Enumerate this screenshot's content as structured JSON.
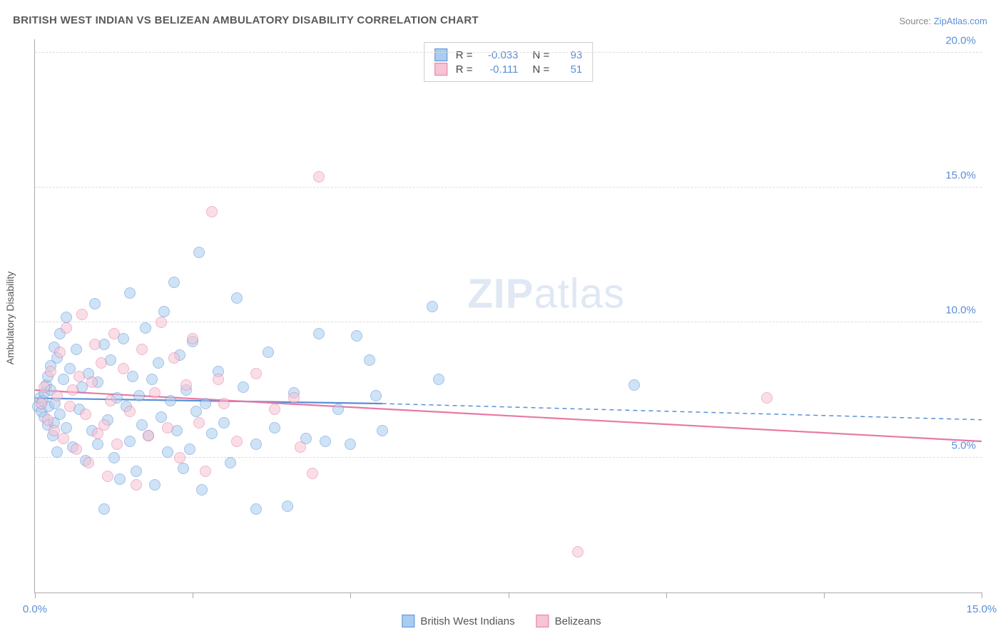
{
  "title": "BRITISH WEST INDIAN VS BELIZEAN AMBULATORY DISABILITY CORRELATION CHART",
  "source_label": "Source: ",
  "source_link_text": "ZipAtlas.com",
  "chart": {
    "type": "scatter",
    "xlim": [
      0,
      15
    ],
    "ylim": [
      0,
      20.5
    ],
    "x_ticks": [
      0,
      2.5,
      5,
      7.5,
      10,
      12.5,
      15
    ],
    "x_tick_labels": [
      "0.0%",
      "",
      "",
      "",
      "",
      "",
      "15.0%"
    ],
    "y_ticks": [
      5,
      10,
      15,
      20
    ],
    "y_tick_labels": [
      "5.0%",
      "10.0%",
      "15.0%",
      "20.0%"
    ],
    "ylabel": "Ambulatory Disability",
    "background_color": "#ffffff",
    "grid_color": "#dddddd",
    "axis_color": "#aaaaaa",
    "tick_label_color": "#5a8fd6",
    "label_color": "#555555",
    "label_fontsize": 14,
    "tick_fontsize": 15,
    "marker_size": 16,
    "marker_opacity": 0.55,
    "watermark_text_bold": "ZIP",
    "watermark_text_light": "atlas",
    "watermark_color": "#dfe8f3",
    "series": [
      {
        "name": "British West Indians",
        "fill_color": "#a9cdef",
        "stroke_color": "#5a8fd6",
        "R": "-0.033",
        "N": "93",
        "trend": {
          "x1": 0,
          "y1": 7.2,
          "x2": 5.5,
          "y2": 7.0,
          "dash_extend_x": 15,
          "dash_extend_y": 6.4,
          "width": 2.2
        },
        "points": [
          [
            0.05,
            6.9
          ],
          [
            0.08,
            7.2
          ],
          [
            0.1,
            6.7
          ],
          [
            0.12,
            7.1
          ],
          [
            0.15,
            6.5
          ],
          [
            0.15,
            7.4
          ],
          [
            0.18,
            7.7
          ],
          [
            0.2,
            6.2
          ],
          [
            0.2,
            8.0
          ],
          [
            0.22,
            6.9
          ],
          [
            0.25,
            7.5
          ],
          [
            0.25,
            8.4
          ],
          [
            0.28,
            5.8
          ],
          [
            0.3,
            6.3
          ],
          [
            0.3,
            9.1
          ],
          [
            0.32,
            7.0
          ],
          [
            0.35,
            8.7
          ],
          [
            0.35,
            5.2
          ],
          [
            0.4,
            9.6
          ],
          [
            0.4,
            6.6
          ],
          [
            0.45,
            7.9
          ],
          [
            0.5,
            6.1
          ],
          [
            0.5,
            10.2
          ],
          [
            0.55,
            8.3
          ],
          [
            0.6,
            5.4
          ],
          [
            0.65,
            9.0
          ],
          [
            0.7,
            6.8
          ],
          [
            0.75,
            7.6
          ],
          [
            0.8,
            4.9
          ],
          [
            0.85,
            8.1
          ],
          [
            0.9,
            6.0
          ],
          [
            0.95,
            10.7
          ],
          [
            1.0,
            5.5
          ],
          [
            1.0,
            7.8
          ],
          [
            1.1,
            3.1
          ],
          [
            1.1,
            9.2
          ],
          [
            1.15,
            6.4
          ],
          [
            1.2,
            8.6
          ],
          [
            1.25,
            5.0
          ],
          [
            1.3,
            7.2
          ],
          [
            1.35,
            4.2
          ],
          [
            1.4,
            9.4
          ],
          [
            1.45,
            6.9
          ],
          [
            1.5,
            11.1
          ],
          [
            1.5,
            5.6
          ],
          [
            1.55,
            8.0
          ],
          [
            1.6,
            4.5
          ],
          [
            1.65,
            7.3
          ],
          [
            1.7,
            6.2
          ],
          [
            1.75,
            9.8
          ],
          [
            1.8,
            5.8
          ],
          [
            1.85,
            7.9
          ],
          [
            1.9,
            4.0
          ],
          [
            1.95,
            8.5
          ],
          [
            2.0,
            6.5
          ],
          [
            2.05,
            10.4
          ],
          [
            2.1,
            5.2
          ],
          [
            2.15,
            7.1
          ],
          [
            2.2,
            11.5
          ],
          [
            2.25,
            6.0
          ],
          [
            2.3,
            8.8
          ],
          [
            2.35,
            4.6
          ],
          [
            2.4,
            7.5
          ],
          [
            2.45,
            5.3
          ],
          [
            2.5,
            9.3
          ],
          [
            2.55,
            6.7
          ],
          [
            2.6,
            12.6
          ],
          [
            2.65,
            3.8
          ],
          [
            2.7,
            7.0
          ],
          [
            2.8,
            5.9
          ],
          [
            2.9,
            8.2
          ],
          [
            3.0,
            6.3
          ],
          [
            3.1,
            4.8
          ],
          [
            3.2,
            10.9
          ],
          [
            3.3,
            7.6
          ],
          [
            3.5,
            5.5
          ],
          [
            3.5,
            3.1
          ],
          [
            3.7,
            8.9
          ],
          [
            3.8,
            6.1
          ],
          [
            4.0,
            3.2
          ],
          [
            4.1,
            7.4
          ],
          [
            4.3,
            5.7
          ],
          [
            4.5,
            9.6
          ],
          [
            4.6,
            5.6
          ],
          [
            4.8,
            6.8
          ],
          [
            5.0,
            5.5
          ],
          [
            5.1,
            9.5
          ],
          [
            5.3,
            8.6
          ],
          [
            5.4,
            7.3
          ],
          [
            5.5,
            6.0
          ],
          [
            6.3,
            10.6
          ],
          [
            6.4,
            7.9
          ],
          [
            9.5,
            7.7
          ]
        ]
      },
      {
        "name": "Belizeans",
        "fill_color": "#f6c4d2",
        "stroke_color": "#e879a6",
        "R": "-0.111",
        "N": "51",
        "trend": {
          "x1": 0,
          "y1": 7.5,
          "x2": 15,
          "y2": 5.6,
          "width": 2.2
        },
        "points": [
          [
            0.1,
            7.0
          ],
          [
            0.15,
            7.6
          ],
          [
            0.2,
            6.4
          ],
          [
            0.25,
            8.2
          ],
          [
            0.3,
            6.0
          ],
          [
            0.35,
            7.3
          ],
          [
            0.4,
            8.9
          ],
          [
            0.45,
            5.7
          ],
          [
            0.5,
            9.8
          ],
          [
            0.55,
            6.9
          ],
          [
            0.6,
            7.5
          ],
          [
            0.65,
            5.3
          ],
          [
            0.7,
            8.0
          ],
          [
            0.75,
            10.3
          ],
          [
            0.8,
            6.6
          ],
          [
            0.85,
            4.8
          ],
          [
            0.9,
            7.8
          ],
          [
            0.95,
            9.2
          ],
          [
            1.0,
            5.9
          ],
          [
            1.05,
            8.5
          ],
          [
            1.1,
            6.2
          ],
          [
            1.15,
            4.3
          ],
          [
            1.2,
            7.1
          ],
          [
            1.25,
            9.6
          ],
          [
            1.3,
            5.5
          ],
          [
            1.4,
            8.3
          ],
          [
            1.5,
            6.7
          ],
          [
            1.6,
            4.0
          ],
          [
            1.7,
            9.0
          ],
          [
            1.8,
            5.8
          ],
          [
            1.9,
            7.4
          ],
          [
            2.0,
            10.0
          ],
          [
            2.1,
            6.1
          ],
          [
            2.2,
            8.7
          ],
          [
            2.3,
            5.0
          ],
          [
            2.4,
            7.7
          ],
          [
            2.5,
            9.4
          ],
          [
            2.6,
            6.3
          ],
          [
            2.7,
            4.5
          ],
          [
            2.8,
            14.1
          ],
          [
            3.0,
            7.0
          ],
          [
            3.2,
            5.6
          ],
          [
            3.5,
            8.1
          ],
          [
            3.8,
            6.8
          ],
          [
            4.1,
            7.2
          ],
          [
            4.2,
            5.4
          ],
          [
            4.4,
            4.4
          ],
          [
            4.5,
            15.4
          ],
          [
            8.6,
            1.5
          ],
          [
            11.6,
            7.2
          ],
          [
            2.9,
            7.9
          ]
        ]
      }
    ],
    "stats_box": {
      "R_label": "R =",
      "N_label": "N ="
    },
    "legend_bottom": [
      {
        "label": "British West Indians",
        "series_index": 0
      },
      {
        "label": "Belizeans",
        "series_index": 1
      }
    ]
  }
}
